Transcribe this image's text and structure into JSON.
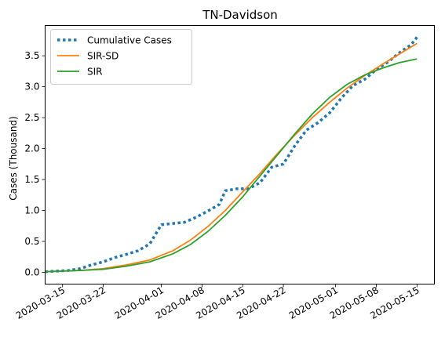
{
  "chart_data": {
    "type": "line",
    "title": "TN-Davidson",
    "ylabel": "Cases (Thousand)",
    "xlabel": "",
    "x_type": "date",
    "xlim": [
      "2020-03-12",
      "2020-05-18"
    ],
    "ylim": [
      -0.19,
      3.99
    ],
    "xticks": [
      {
        "date": "2020-03-15",
        "label": "2020-03-15"
      },
      {
        "date": "2020-03-22",
        "label": "2020-03-22"
      },
      {
        "date": "2020-04-01",
        "label": "2020-04-01"
      },
      {
        "date": "2020-04-08",
        "label": "2020-04-08"
      },
      {
        "date": "2020-04-15",
        "label": "2020-04-15"
      },
      {
        "date": "2020-04-22",
        "label": "2020-04-22"
      },
      {
        "date": "2020-05-01",
        "label": "2020-05-01"
      },
      {
        "date": "2020-05-08",
        "label": "2020-05-08"
      },
      {
        "date": "2020-05-15",
        "label": "2020-05-15"
      }
    ],
    "yticks": [
      {
        "value": 0.0,
        "label": "0.0"
      },
      {
        "value": 0.5,
        "label": "0.5"
      },
      {
        "value": 1.0,
        "label": "1.0"
      },
      {
        "value": 1.5,
        "label": "1.5"
      },
      {
        "value": 2.0,
        "label": "2.0"
      },
      {
        "value": 2.5,
        "label": "2.5"
      },
      {
        "value": 3.0,
        "label": "3.0"
      },
      {
        "value": 3.5,
        "label": "3.5"
      }
    ],
    "legend_position": "top-left",
    "grid": false,
    "series": [
      {
        "name": "Cumulative Cases",
        "color": "#1f77b4",
        "style": "dotted",
        "points": [
          [
            "2020-03-12",
            0.01
          ],
          [
            "2020-03-14",
            0.02
          ],
          [
            "2020-03-16",
            0.03
          ],
          [
            "2020-03-18",
            0.06
          ],
          [
            "2020-03-20",
            0.12
          ],
          [
            "2020-03-22",
            0.17
          ],
          [
            "2020-03-24",
            0.24
          ],
          [
            "2020-03-26",
            0.29
          ],
          [
            "2020-03-28",
            0.35
          ],
          [
            "2020-03-30",
            0.46
          ],
          [
            "2020-04-01",
            0.77
          ],
          [
            "2020-04-03",
            0.79
          ],
          [
            "2020-04-05",
            0.81
          ],
          [
            "2020-04-07",
            0.89
          ],
          [
            "2020-04-09",
            0.99
          ],
          [
            "2020-04-11",
            1.1
          ],
          [
            "2020-04-12",
            1.32
          ],
          [
            "2020-04-14",
            1.35
          ],
          [
            "2020-04-16",
            1.35
          ],
          [
            "2020-04-18",
            1.45
          ],
          [
            "2020-04-20",
            1.7
          ],
          [
            "2020-04-22",
            1.75
          ],
          [
            "2020-04-24",
            2.05
          ],
          [
            "2020-04-26",
            2.3
          ],
          [
            "2020-04-28",
            2.42
          ],
          [
            "2020-04-30",
            2.58
          ],
          [
            "2020-05-02",
            2.82
          ],
          [
            "2020-05-04",
            3.02
          ],
          [
            "2020-05-06",
            3.12
          ],
          [
            "2020-05-08",
            3.28
          ],
          [
            "2020-05-10",
            3.4
          ],
          [
            "2020-05-12",
            3.55
          ],
          [
            "2020-05-14",
            3.68
          ],
          [
            "2020-05-15",
            3.8
          ]
        ]
      },
      {
        "name": "SIR-SD",
        "color": "#ff7f0e",
        "style": "solid",
        "points": [
          [
            "2020-03-12",
            0.01
          ],
          [
            "2020-03-15",
            0.02
          ],
          [
            "2020-03-18",
            0.03
          ],
          [
            "2020-03-22",
            0.06
          ],
          [
            "2020-03-26",
            0.12
          ],
          [
            "2020-03-30",
            0.2
          ],
          [
            "2020-04-03",
            0.35
          ],
          [
            "2020-04-06",
            0.52
          ],
          [
            "2020-04-09",
            0.74
          ],
          [
            "2020-04-12",
            1.0
          ],
          [
            "2020-04-15",
            1.3
          ],
          [
            "2020-04-18",
            1.6
          ],
          [
            "2020-04-21",
            1.92
          ],
          [
            "2020-04-24",
            2.22
          ],
          [
            "2020-04-27",
            2.5
          ],
          [
            "2020-04-30",
            2.75
          ],
          [
            "2020-05-03",
            2.98
          ],
          [
            "2020-05-06",
            3.18
          ],
          [
            "2020-05-09",
            3.36
          ],
          [
            "2020-05-12",
            3.53
          ],
          [
            "2020-05-15",
            3.7
          ]
        ]
      },
      {
        "name": "SIR",
        "color": "#2ca02c",
        "style": "solid",
        "points": [
          [
            "2020-03-12",
            0.01
          ],
          [
            "2020-03-15",
            0.02
          ],
          [
            "2020-03-18",
            0.03
          ],
          [
            "2020-03-22",
            0.05
          ],
          [
            "2020-03-26",
            0.1
          ],
          [
            "2020-03-30",
            0.17
          ],
          [
            "2020-04-03",
            0.3
          ],
          [
            "2020-04-06",
            0.45
          ],
          [
            "2020-04-09",
            0.66
          ],
          [
            "2020-04-12",
            0.92
          ],
          [
            "2020-04-15",
            1.22
          ],
          [
            "2020-04-18",
            1.56
          ],
          [
            "2020-04-21",
            1.9
          ],
          [
            "2020-04-24",
            2.24
          ],
          [
            "2020-04-27",
            2.56
          ],
          [
            "2020-04-30",
            2.83
          ],
          [
            "2020-05-03",
            3.04
          ],
          [
            "2020-05-06",
            3.19
          ],
          [
            "2020-05-09",
            3.3
          ],
          [
            "2020-05-12",
            3.39
          ],
          [
            "2020-05-15",
            3.45
          ]
        ]
      }
    ]
  }
}
